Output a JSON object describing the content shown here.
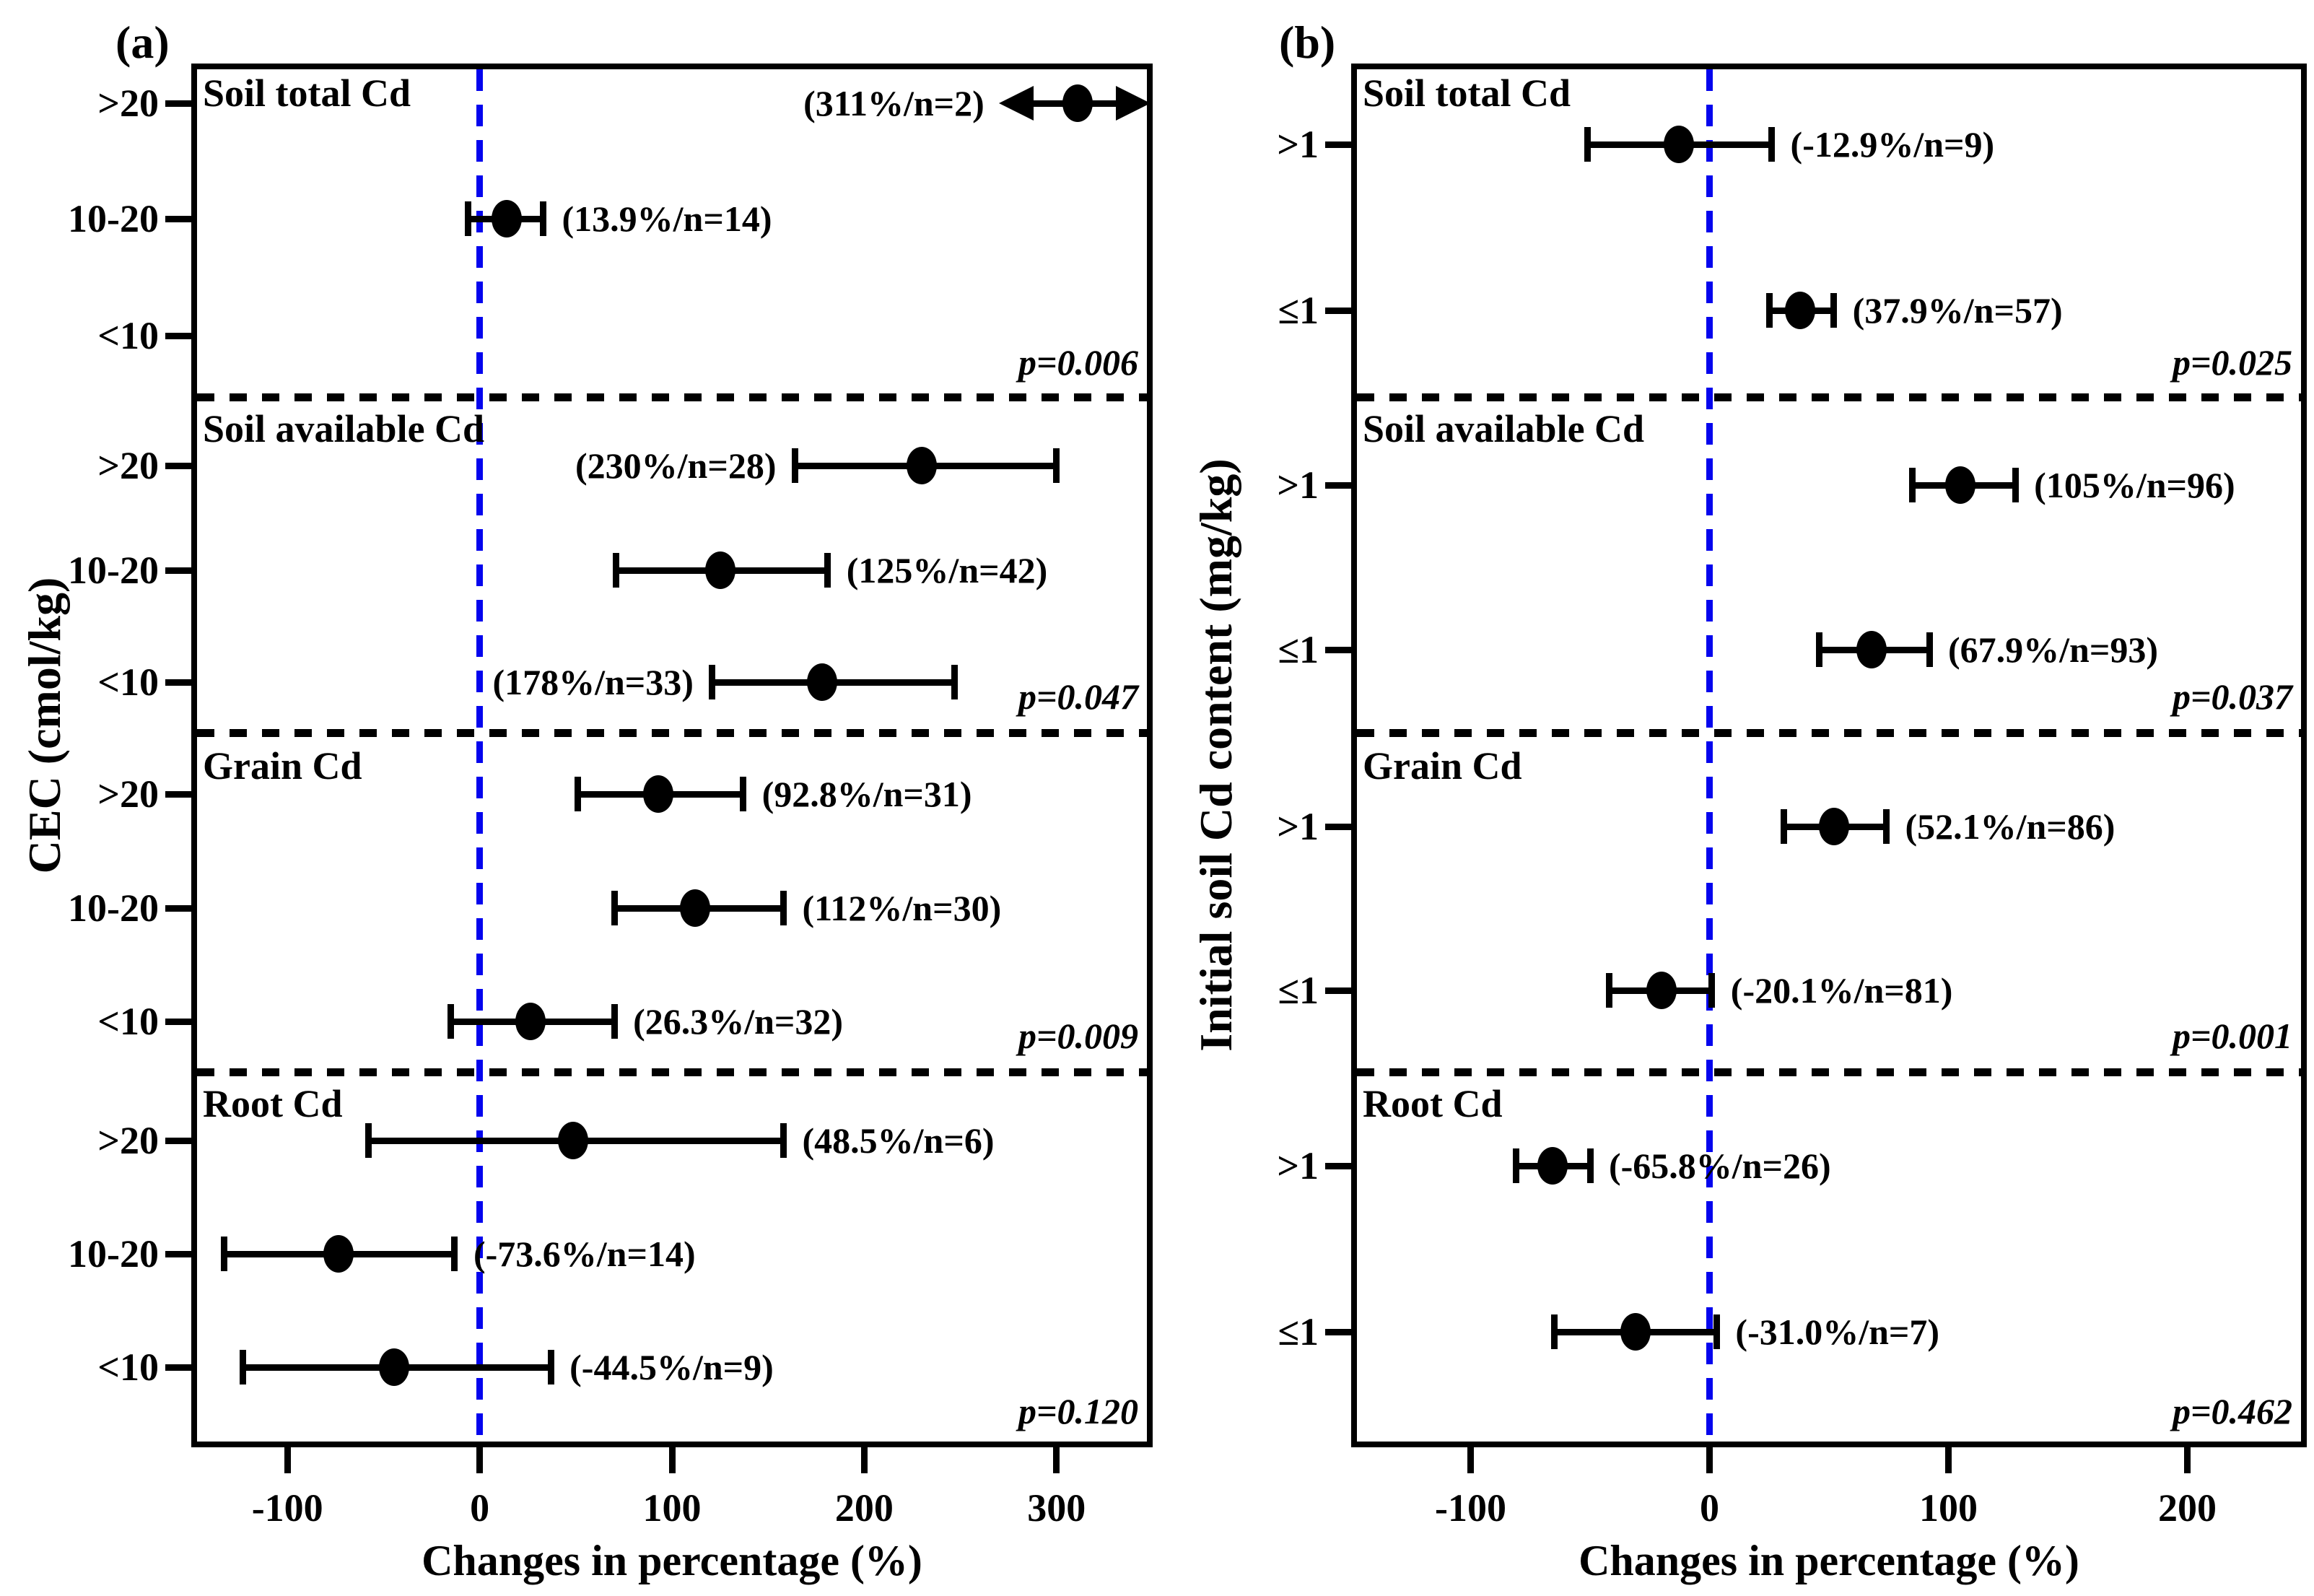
{
  "figure_title": "",
  "colors": {
    "marker": "#000000",
    "zero_line": "#0505ee",
    "separator": "#000000",
    "text": "#000000",
    "background": "#ffffff"
  },
  "chart_data": [
    {
      "type": "scatter",
      "subtype": "forest-plot-with-error-bars",
      "panel": "a",
      "letter": "(a)",
      "ylabel": "CEC (cmol/kg)",
      "xlabel": "Changes in percentage (%)",
      "x_ticks": [
        -100,
        0,
        100,
        200,
        300
      ],
      "x_range": [
        -150,
        350
      ],
      "zero_reference_line": 0,
      "sections": [
        {
          "title": "Soil total Cd",
          "p_value": "p=0.006",
          "rows": [
            {
              "category": ">20",
              "mean": 311,
              "n": 2,
              "label": "(311%/n=2)",
              "label_side": "left",
              "ci": [
                285,
                345
              ],
              "clipped_arrow": true
            },
            {
              "category": "10-20",
              "mean": 13.9,
              "n": 14,
              "label": "(13.9%/n=14)",
              "label_side": "right",
              "ci": [
                -6,
                33
              ],
              "clipped_arrow": false
            },
            {
              "category": "<10",
              "mean": null,
              "n": null,
              "label": "",
              "label_side": "right",
              "ci": null,
              "clipped_arrow": false
            }
          ]
        },
        {
          "title": "Soil available Cd",
          "p_value": "p=0.047",
          "rows": [
            {
              "category": ">20",
              "mean": 230,
              "n": 28,
              "label": "(230%/n=28)",
              "label_side": "left",
              "ci": [
                164,
                300
              ],
              "clipped_arrow": false
            },
            {
              "category": "10-20",
              "mean": 125,
              "n": 42,
              "label": "(125%/n=42)",
              "label_side": "right",
              "ci": [
                71,
                181
              ],
              "clipped_arrow": false
            },
            {
              "category": "<10",
              "mean": 178,
              "n": 33,
              "label": "(178%/n=33)",
              "label_side": "left",
              "ci": [
                121,
                247
              ],
              "clipped_arrow": false
            }
          ]
        },
        {
          "title": "Grain Cd",
          "p_value": "p=0.009",
          "rows": [
            {
              "category": ">20",
              "mean": 92.8,
              "n": 31,
              "label": "(92.8%/n=31)",
              "label_side": "right",
              "ci": [
                51,
                137
              ],
              "clipped_arrow": false
            },
            {
              "category": "10-20",
              "mean": 112,
              "n": 30,
              "label": "(112%/n=30)",
              "label_side": "right",
              "ci": [
                70,
                158
              ],
              "clipped_arrow": false
            },
            {
              "category": "<10",
              "mean": 26.3,
              "n": 32,
              "label": "(26.3%/n=32)",
              "label_side": "right",
              "ci": [
                -15,
                70
              ],
              "clipped_arrow": false
            }
          ]
        },
        {
          "title": "Root Cd",
          "p_value": "p=0.120",
          "rows": [
            {
              "category": ">20",
              "mean": 48.5,
              "n": 6,
              "label": "(48.5%/n=6)",
              "label_side": "right",
              "ci": [
                -58,
                158
              ],
              "clipped_arrow": false
            },
            {
              "category": "10-20",
              "mean": -73.6,
              "n": 14,
              "label": "(-73.6%/n=14)",
              "label_side": "right",
              "ci": [
                -133,
                -13
              ],
              "clipped_arrow": false
            },
            {
              "category": "<10",
              "mean": -44.5,
              "n": 9,
              "label": "(-44.5%/n=9)",
              "label_side": "right",
              "ci": [
                -123,
                37
              ],
              "clipped_arrow": false
            }
          ]
        }
      ]
    },
    {
      "type": "scatter",
      "subtype": "forest-plot-with-error-bars",
      "panel": "b",
      "letter": "(b)",
      "ylabel": "Initial soil Cd content (mg/kg)",
      "xlabel": "Changes in percentage (%)",
      "x_ticks": [
        -100,
        0,
        100,
        200
      ],
      "x_range": [
        -150,
        250
      ],
      "zero_reference_line": 0,
      "sections": [
        {
          "title": "Soil total Cd",
          "p_value": "p=0.025",
          "rows": [
            {
              "category": ">1",
              "mean": -12.9,
              "n": 9,
              "label": "(-12.9%/n=9)",
              "label_side": "right",
              "ci": [
                -51,
                26
              ],
              "clipped_arrow": false
            },
            {
              "category": "≤1",
              "mean": 37.9,
              "n": 57,
              "label": "(37.9%/n=57)",
              "label_side": "right",
              "ci": [
                25,
                52
              ],
              "clipped_arrow": false
            }
          ]
        },
        {
          "title": "Soil available Cd",
          "p_value": "p=0.037",
          "rows": [
            {
              "category": ">1",
              "mean": 105,
              "n": 96,
              "label": "(105%/n=96)",
              "label_side": "right",
              "ci": [
                85,
                128
              ],
              "clipped_arrow": false
            },
            {
              "category": "≤1",
              "mean": 67.9,
              "n": 93,
              "label": "(67.9%/n=93)",
              "label_side": "right",
              "ci": [
                46,
                92
              ],
              "clipped_arrow": false
            }
          ]
        },
        {
          "title": "Grain Cd",
          "p_value": "p=0.001",
          "rows": [
            {
              "category": ">1",
              "mean": 52.1,
              "n": 86,
              "label": "(52.1%/n=86)",
              "label_side": "right",
              "ci": [
                31,
                74
              ],
              "clipped_arrow": false
            },
            {
              "category": "≤1",
              "mean": -20.1,
              "n": 81,
              "label": "(-20.1%/n=81)",
              "label_side": "right",
              "ci": [
                -42,
                1
              ],
              "clipped_arrow": false
            }
          ]
        },
        {
          "title": "Root Cd",
          "p_value": "p=0.462",
          "rows": [
            {
              "category": ">1",
              "mean": -65.8,
              "n": 26,
              "label": "(-65.8%/n=26)",
              "label_side": "right",
              "ci": [
                -81,
                -50
              ],
              "clipped_arrow": false
            },
            {
              "category": "≤1",
              "mean": -31.0,
              "n": 7,
              "label": "(-31.0%/n=7)",
              "label_side": "right",
              "ci": [
                -65,
                3
              ],
              "clipped_arrow": false
            }
          ]
        }
      ]
    }
  ]
}
